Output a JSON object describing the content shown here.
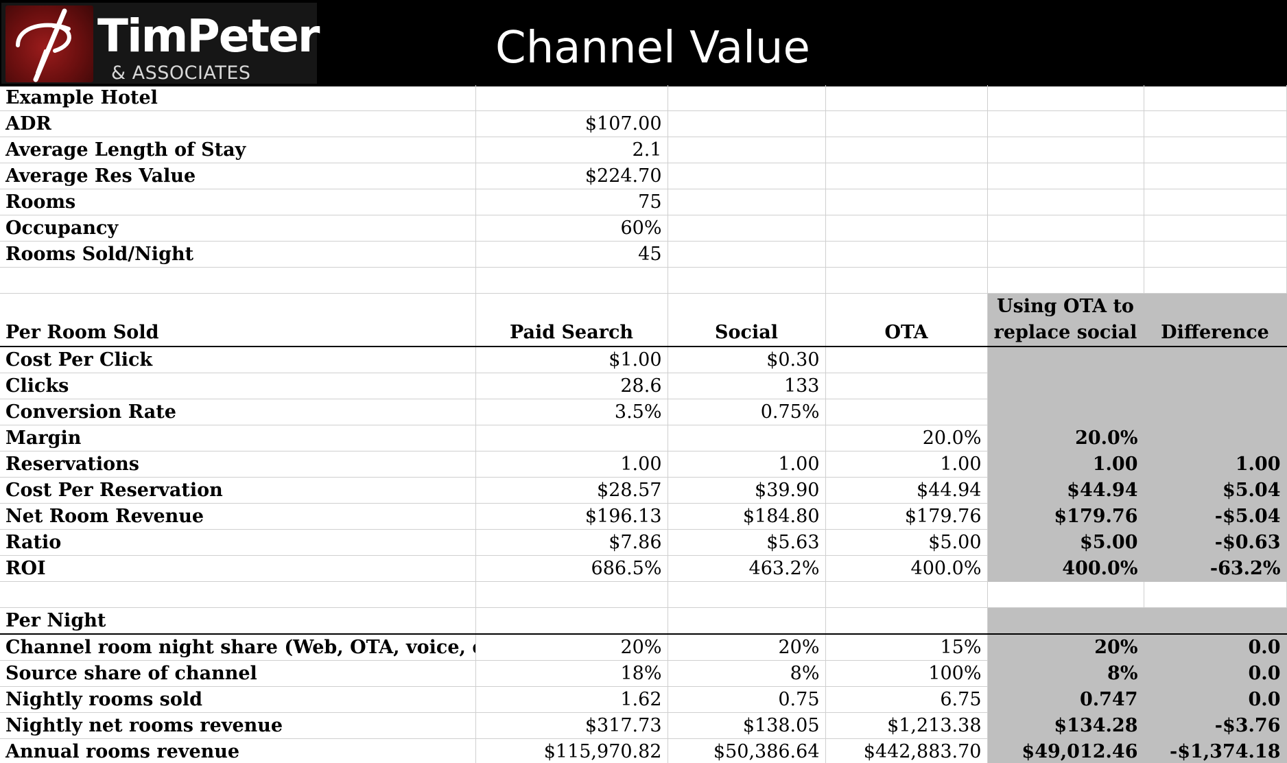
{
  "header": {
    "logo_name": "TimPeter",
    "logo_sub": "& ASSOCIATES",
    "title": "Channel Value"
  },
  "hotel": {
    "name": "Example Hotel",
    "rows": [
      {
        "label": "ADR",
        "value": "$107.00"
      },
      {
        "label": "Average Length of Stay",
        "value": "2.1"
      },
      {
        "label": "Average Res Value",
        "value": "$224.70"
      },
      {
        "label": "Rooms",
        "value": "75"
      },
      {
        "label": "Occupancy",
        "value": "60%"
      },
      {
        "label": "Rooms Sold/Night",
        "value": "45"
      }
    ]
  },
  "per_room": {
    "header": {
      "label": "Per Room Sold",
      "paid_search": "Paid Search",
      "social": "Social",
      "ota": "OTA",
      "replace_line1": "Using OTA to",
      "replace_line2": "replace social",
      "difference": "Difference"
    },
    "rows": [
      {
        "label": "Cost Per Click",
        "paid": "$1.00",
        "social": "$0.30",
        "ota": "",
        "replace": "",
        "diff": ""
      },
      {
        "label": "Clicks",
        "paid": "28.6",
        "social": "133",
        "ota": "",
        "replace": "",
        "diff": ""
      },
      {
        "label": "Conversion Rate",
        "paid": "3.5%",
        "social": "0.75%",
        "ota": "",
        "replace": "",
        "diff": ""
      },
      {
        "label": "Margin",
        "paid": "",
        "social": "",
        "ota": "20.0%",
        "replace": "20.0%",
        "diff": ""
      },
      {
        "label": "Reservations",
        "paid": "1.00",
        "social": "1.00",
        "ota": "1.00",
        "replace": "1.00",
        "diff": "1.00"
      },
      {
        "label": "Cost Per Reservation",
        "paid": "$28.57",
        "social": "$39.90",
        "ota": "$44.94",
        "replace": "$44.94",
        "diff": "$5.04"
      },
      {
        "label": "Net Room Revenue",
        "paid": "$196.13",
        "social": "$184.80",
        "ota": "$179.76",
        "replace": "$179.76",
        "diff": "-$5.04"
      },
      {
        "label": "Ratio",
        "paid": "$7.86",
        "social": "$5.63",
        "ota": "$5.00",
        "replace": "$5.00",
        "diff": "-$0.63"
      },
      {
        "label": "ROI",
        "paid": "686.5%",
        "social": "463.2%",
        "ota": "400.0%",
        "replace": "400.0%",
        "diff": "-63.2%"
      }
    ]
  },
  "per_night": {
    "label": "Per Night",
    "rows": [
      {
        "label": "Channel room night share (Web, OTA, voice, etc.)",
        "paid": "20%",
        "social": "20%",
        "ota": "15%",
        "replace": "20%",
        "diff": "0.0"
      },
      {
        "label": "Source share of channel",
        "paid": "18%",
        "social": "8%",
        "ota": "100%",
        "replace": "8%",
        "diff": "0.0"
      },
      {
        "label": "Nightly rooms sold",
        "paid": "1.62",
        "social": "0.75",
        "ota": "6.75",
        "replace": "0.747",
        "diff": "0.0"
      },
      {
        "label": "Nightly net rooms revenue",
        "paid": "$317.73",
        "social": "$138.05",
        "ota": "$1,213.38",
        "replace": "$134.28",
        "diff": "-$3.76"
      },
      {
        "label": "Annual rooms revenue",
        "paid": "$115,970.82",
        "social": "$50,386.64",
        "ota": "$442,883.70",
        "replace": "$49,012.46",
        "diff": "-$1,374.18"
      }
    ]
  },
  "colors": {
    "header_bg": "#000000",
    "highlight_gray": "#bfbfbf",
    "logo_red": "#8b1515"
  }
}
